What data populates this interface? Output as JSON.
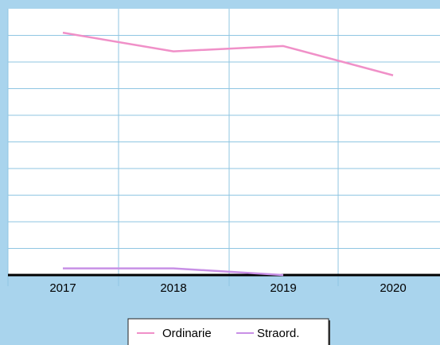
{
  "chart_data": {
    "type": "line",
    "categories": [
      "2017",
      "2018",
      "2019",
      "2020"
    ],
    "series": [
      {
        "name": "Ordinarie",
        "color": "#f090c8",
        "values": [
          91,
          84,
          86,
          75
        ]
      },
      {
        "name": "Straord.",
        "color": "#c890e6",
        "values": [
          2.5,
          2.5,
          0,
          null
        ]
      }
    ],
    "ylim": [
      0,
      100
    ],
    "grid": true,
    "legend_position": "bottom"
  },
  "colors": {
    "background": "#a9d4ed",
    "plot_area": "#ffffff",
    "grid": "#8fc6e2",
    "axis": "#000000"
  }
}
